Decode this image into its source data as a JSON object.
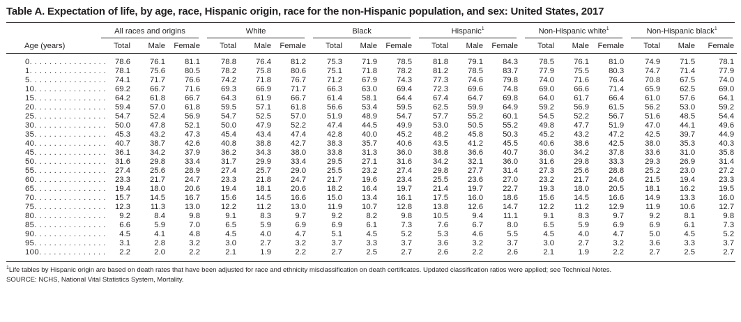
{
  "title": "Table A. Expectation of life, by age, race, Hispanic origin, race for the non-Hispanic population, and sex: United States, 2017",
  "groups": [
    {
      "label": "All races and origins",
      "sup": ""
    },
    {
      "label": "White",
      "sup": ""
    },
    {
      "label": "Black",
      "sup": ""
    },
    {
      "label": "Hispanic",
      "sup": "1"
    },
    {
      "label": "Non-Hispanic white",
      "sup": "1"
    },
    {
      "label": "Non-Hispanic black",
      "sup": "1"
    }
  ],
  "age_header": "Age (years)",
  "sub_headers": [
    "Total",
    "Male",
    "Female"
  ],
  "rows": [
    {
      "age": "0. . . . . . . . . . . . . . . .",
      "v": [
        "78.6",
        "76.1",
        "81.1",
        "78.8",
        "76.4",
        "81.2",
        "75.3",
        "71.9",
        "78.5",
        "81.8",
        "79.1",
        "84.3",
        "78.5",
        "76.1",
        "81.0",
        "74.9",
        "71.5",
        "78.1"
      ]
    },
    {
      "age": "1. . . . . . . . . . . . . . . .",
      "v": [
        "78.1",
        "75.6",
        "80.5",
        "78.2",
        "75.8",
        "80.6",
        "75.1",
        "71.8",
        "78.2",
        "81.2",
        "78.5",
        "83.7",
        "77.9",
        "75.5",
        "80.3",
        "74.7",
        "71.4",
        "77.9"
      ]
    },
    {
      "age": "5. . . . . . . . . . . . . . . .",
      "v": [
        "74.1",
        "71.7",
        "76.6",
        "74.2",
        "71.8",
        "76.7",
        "71.2",
        "67.9",
        "74.3",
        "77.3",
        "74.6",
        "79.8",
        "74.0",
        "71.6",
        "76.4",
        "70.8",
        "67.5",
        "74.0"
      ]
    },
    {
      "age": "10. . . . . . . . . . . . . . .",
      "v": [
        "69.2",
        "66.7",
        "71.6",
        "69.3",
        "66.9",
        "71.7",
        "66.3",
        "63.0",
        "69.4",
        "72.3",
        "69.6",
        "74.8",
        "69.0",
        "66.6",
        "71.4",
        "65.9",
        "62.5",
        "69.0"
      ]
    },
    {
      "age": "15. . . . . . . . . . . . . . .",
      "v": [
        "64.2",
        "61.8",
        "66.7",
        "64.3",
        "61.9",
        "66.7",
        "61.4",
        "58.1",
        "64.4",
        "67.4",
        "64.7",
        "69.8",
        "64.0",
        "61.7",
        "66.4",
        "61.0",
        "57.6",
        "64.1"
      ]
    },
    {
      "age": "20. . . . . . . . . . . . . . .",
      "v": [
        "59.4",
        "57.0",
        "61.8",
        "59.5",
        "57.1",
        "61.8",
        "56.6",
        "53.4",
        "59.5",
        "62.5",
        "59.9",
        "64.9",
        "59.2",
        "56.9",
        "61.5",
        "56.2",
        "53.0",
        "59.2"
      ]
    },
    {
      "age": "25. . . . . . . . . . . . . . .",
      "v": [
        "54.7",
        "52.4",
        "56.9",
        "54.7",
        "52.5",
        "57.0",
        "51.9",
        "48.9",
        "54.7",
        "57.7",
        "55.2",
        "60.1",
        "54.5",
        "52.2",
        "56.7",
        "51.6",
        "48.5",
        "54.4"
      ]
    },
    {
      "age": "30. . . . . . . . . . . . . . .",
      "v": [
        "50.0",
        "47.8",
        "52.1",
        "50.0",
        "47.9",
        "52.2",
        "47.4",
        "44.5",
        "49.9",
        "53.0",
        "50.5",
        "55.2",
        "49.8",
        "47.7",
        "51.9",
        "47.0",
        "44.1",
        "49.6"
      ]
    },
    {
      "age": "35. . . . . . . . . . . . . . .",
      "v": [
        "45.3",
        "43.2",
        "47.3",
        "45.4",
        "43.4",
        "47.4",
        "42.8",
        "40.0",
        "45.2",
        "48.2",
        "45.8",
        "50.3",
        "45.2",
        "43.2",
        "47.2",
        "42.5",
        "39.7",
        "44.9"
      ]
    },
    {
      "age": "40. . . . . . . . . . . . . . .",
      "v": [
        "40.7",
        "38.7",
        "42.6",
        "40.8",
        "38.8",
        "42.7",
        "38.3",
        "35.7",
        "40.6",
        "43.5",
        "41.2",
        "45.5",
        "40.6",
        "38.6",
        "42.5",
        "38.0",
        "35.3",
        "40.3"
      ]
    },
    {
      "age": "45. . . . . . . . . . . . . . .",
      "v": [
        "36.1",
        "34.2",
        "37.9",
        "36.2",
        "34.3",
        "38.0",
        "33.8",
        "31.3",
        "36.0",
        "38.8",
        "36.6",
        "40.7",
        "36.0",
        "34.2",
        "37.8",
        "33.6",
        "31.0",
        "35.8"
      ]
    },
    {
      "age": "50. . . . . . . . . . . . . . .",
      "v": [
        "31.6",
        "29.8",
        "33.4",
        "31.7",
        "29.9",
        "33.4",
        "29.5",
        "27.1",
        "31.6",
        "34.2",
        "32.1",
        "36.0",
        "31.6",
        "29.8",
        "33.3",
        "29.3",
        "26.9",
        "31.4"
      ]
    },
    {
      "age": "55. . . . . . . . . . . . . . .",
      "v": [
        "27.4",
        "25.6",
        "28.9",
        "27.4",
        "25.7",
        "29.0",
        "25.5",
        "23.2",
        "27.4",
        "29.8",
        "27.7",
        "31.4",
        "27.3",
        "25.6",
        "28.8",
        "25.2",
        "23.0",
        "27.2"
      ]
    },
    {
      "age": "60. . . . . . . . . . . . . . .",
      "v": [
        "23.3",
        "21.7",
        "24.7",
        "23.3",
        "21.8",
        "24.7",
        "21.7",
        "19.6",
        "23.4",
        "25.5",
        "23.6",
        "27.0",
        "23.2",
        "21.7",
        "24.6",
        "21.5",
        "19.4",
        "23.3"
      ]
    },
    {
      "age": "65. . . . . . . . . . . . . . .",
      "v": [
        "19.4",
        "18.0",
        "20.6",
        "19.4",
        "18.1",
        "20.6",
        "18.2",
        "16.4",
        "19.7",
        "21.4",
        "19.7",
        "22.7",
        "19.3",
        "18.0",
        "20.5",
        "18.1",
        "16.2",
        "19.5"
      ]
    },
    {
      "age": "70. . . . . . . . . . . . . . .",
      "v": [
        "15.7",
        "14.5",
        "16.7",
        "15.6",
        "14.5",
        "16.6",
        "15.0",
        "13.4",
        "16.1",
        "17.5",
        "16.0",
        "18.6",
        "15.6",
        "14.5",
        "16.6",
        "14.9",
        "13.3",
        "16.0"
      ]
    },
    {
      "age": "75. . . . . . . . . . . . . . .",
      "v": [
        "12.3",
        "11.3",
        "13.0",
        "12.2",
        "11.2",
        "13.0",
        "11.9",
        "10.7",
        "12.8",
        "13.8",
        "12.6",
        "14.7",
        "12.2",
        "11.2",
        "12.9",
        "11.9",
        "10.6",
        "12.7"
      ]
    },
    {
      "age": "80. . . . . . . . . . . . . . .",
      "v": [
        "9.2",
        "8.4",
        "9.8",
        "9.1",
        "8.3",
        "9.7",
        "9.2",
        "8.2",
        "9.8",
        "10.5",
        "9.4",
        "11.1",
        "9.1",
        "8.3",
        "9.7",
        "9.2",
        "8.1",
        "9.8"
      ]
    },
    {
      "age": "85. . . . . . . . . . . . . . .",
      "v": [
        "6.6",
        "5.9",
        "7.0",
        "6.5",
        "5.9",
        "6.9",
        "6.9",
        "6.1",
        "7.3",
        "7.6",
        "6.7",
        "8.0",
        "6.5",
        "5.9",
        "6.9",
        "6.9",
        "6.1",
        "7.3"
      ]
    },
    {
      "age": "90. . . . . . . . . . . . . . .",
      "v": [
        "4.5",
        "4.1",
        "4.8",
        "4.5",
        "4.0",
        "4.7",
        "5.1",
        "4.5",
        "5.2",
        "5.3",
        "4.6",
        "5.5",
        "4.5",
        "4.0",
        "4.7",
        "5.0",
        "4.5",
        "5.2"
      ]
    },
    {
      "age": "95. . . . . . . . . . . . . . .",
      "v": [
        "3.1",
        "2.8",
        "3.2",
        "3.0",
        "2.7",
        "3.2",
        "3.7",
        "3.3",
        "3.7",
        "3.6",
        "3.2",
        "3.7",
        "3.0",
        "2.7",
        "3.2",
        "3.6",
        "3.3",
        "3.7"
      ]
    },
    {
      "age": "100. . . . . . . . . . . . . .",
      "v": [
        "2.2",
        "2.0",
        "2.2",
        "2.1",
        "1.9",
        "2.2",
        "2.7",
        "2.5",
        "2.7",
        "2.6",
        "2.2",
        "2.6",
        "2.1",
        "1.9",
        "2.2",
        "2.7",
        "2.5",
        "2.7"
      ]
    }
  ],
  "footnote": {
    "marker": "1",
    "text": "Life tables by Hispanic origin are based on death rates that have been adjusted for race and ethnicity misclassification on death certificates. Updated classification ratios were applied; see Technical Notes."
  },
  "source": "SOURCE: NCHS, National Vital Statistics System, Mortality."
}
